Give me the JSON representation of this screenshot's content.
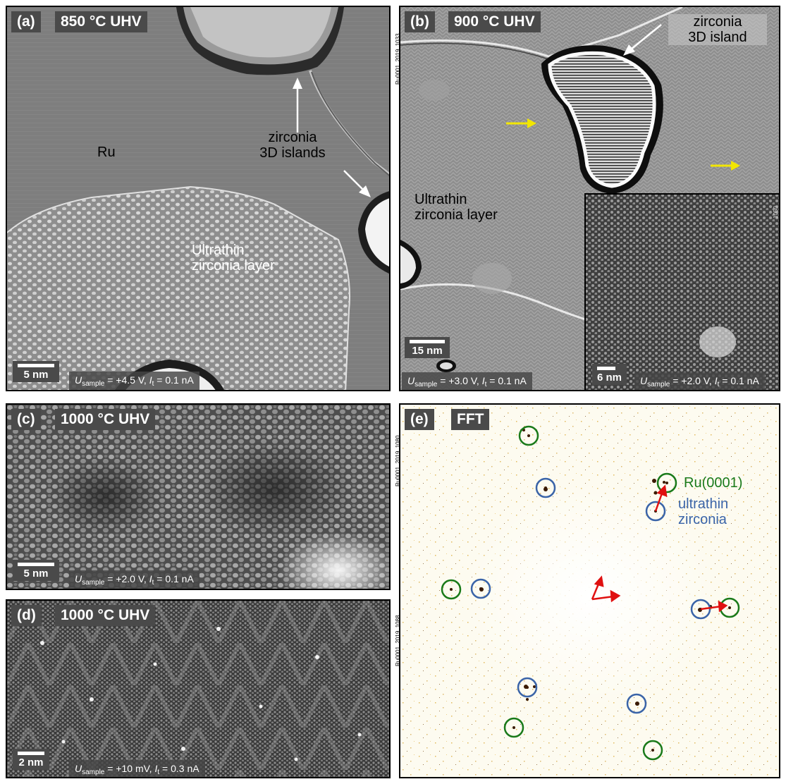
{
  "panels": {
    "a": {
      "label": "(a)",
      "condition": "850 °C UHV",
      "scale": "5 nm",
      "u_val": " = +4.5 V, ",
      "i_val": " = 0.1 nA",
      "ru": "Ru",
      "islands_1": "zirconia",
      "islands_2": "3D islands",
      "layer_1": "Ultrathin",
      "layer_2": "zirconia layer"
    },
    "b": {
      "label": "(b)",
      "condition": "900 °C UHV",
      "scale": "15 nm",
      "inset_scale": "6 nm",
      "u_val": " = +3.0 V, ",
      "i_val": " = 0.1 nA",
      "inset_u_val": " = +2.0 V, ",
      "inset_i_val": " = 0.1 nA",
      "island_1": "zirconia",
      "island_2": "3D island",
      "layer_1": "Ultrathin",
      "layer_2": "zirconia layer",
      "side_id": "Ru0001_2019_1033",
      "inset_id": "1050"
    },
    "c": {
      "label": "(c)",
      "condition": "1000 °C UHV",
      "scale": "5 nm",
      "u_val": " = +2.0 V, ",
      "i_val": " = 0.1 nA",
      "side_id": "Ru0001_2019_1080"
    },
    "d": {
      "label": "(d)",
      "condition": "1000 °C UHV",
      "scale": "2 nm",
      "u_val": " = +10 mV, ",
      "i_val": " = 0.3 nA",
      "side_id": "Ru0001_2019_1088"
    },
    "e": {
      "label": "(e)",
      "condition": "FFT",
      "legend_ru": "Ru(0001)",
      "legend_zr_1": "ultrathin",
      "legend_zr_2": "zirconia"
    }
  },
  "symbols": {
    "U": "U",
    "U_sub": "sample",
    "I": "I",
    "I_sub": "t"
  },
  "colors": {
    "ru_circle": "#1a7a1a",
    "zirconia_circle": "#3a64a8",
    "red_arrow": "#e01010",
    "yellow_arrow": "#f2e600",
    "fft_bg": "#fdfbf0",
    "label_bg": "#4a4a4a"
  }
}
